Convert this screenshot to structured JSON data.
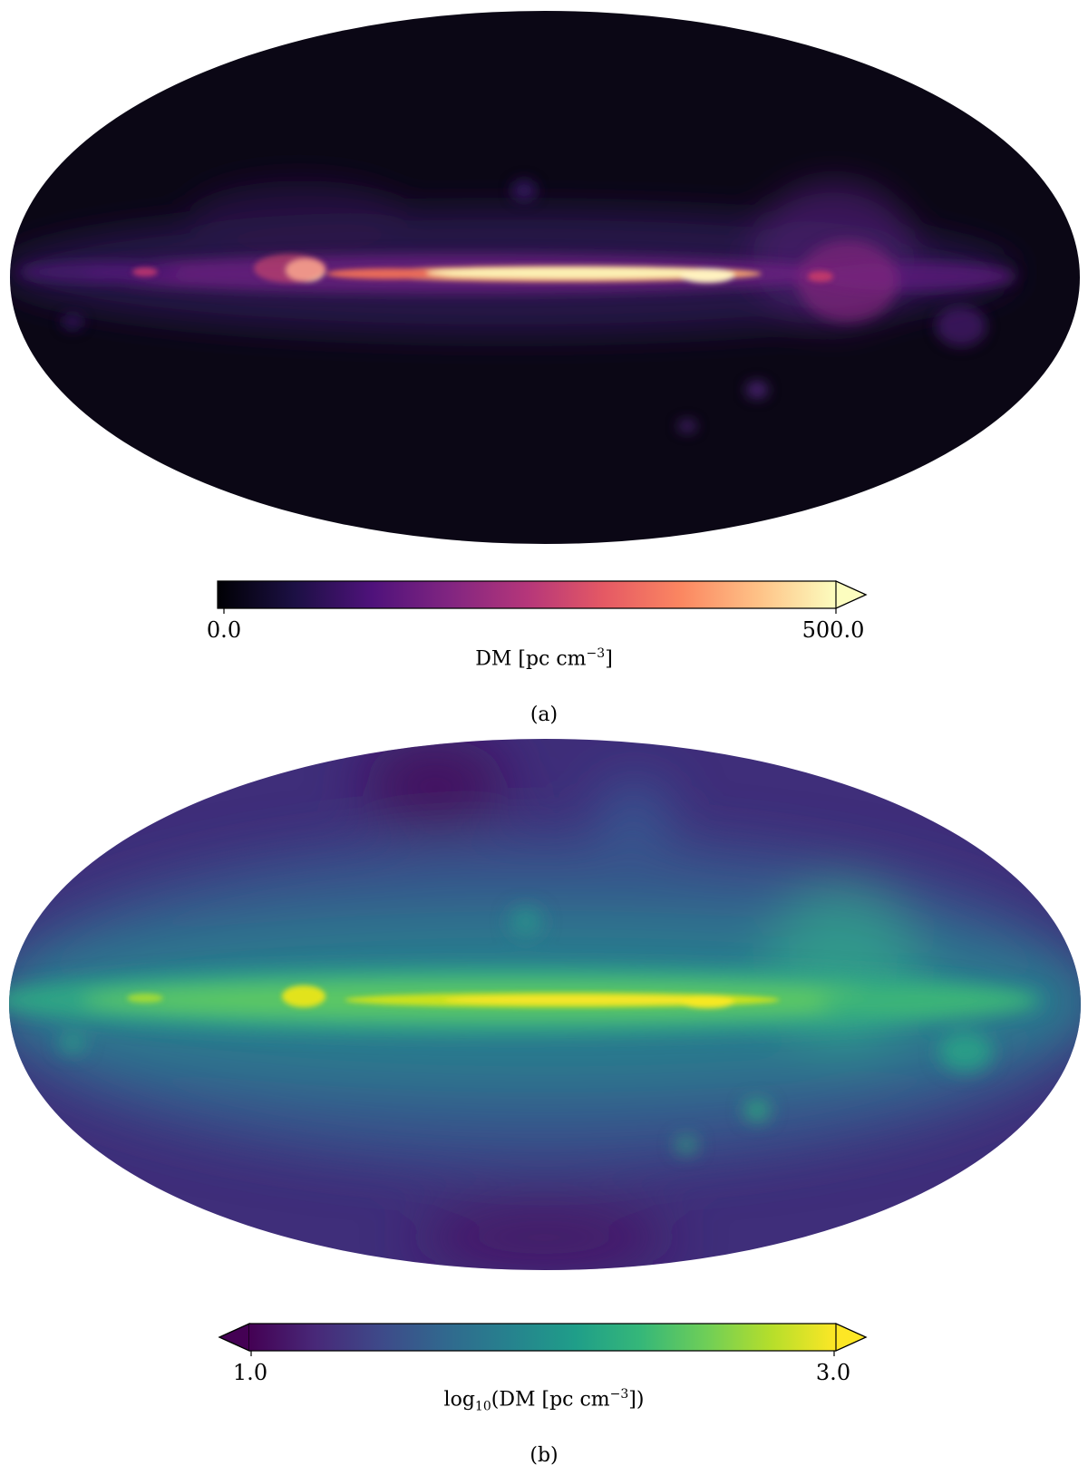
{
  "chart_data": [
    {
      "type": "heatmap",
      "projection": "mollweide",
      "panel": "(a)",
      "colormap": "magma",
      "colors": [
        "#000004",
        "#1c1044",
        "#4f127b",
        "#812581",
        "#b5367a",
        "#e55964",
        "#fb8761",
        "#fec287",
        "#fcfdbf"
      ],
      "colorbar": {
        "ticks": [
          "0.0",
          "500.0"
        ],
        "range": [
          0,
          500
        ],
        "extend": "max",
        "label_main": "DM [pc cm",
        "label_sup": "−3",
        "label_end": "]"
      }
    },
    {
      "type": "heatmap",
      "projection": "mollweide",
      "panel": "(b)",
      "colormap": "viridis",
      "colors": [
        "#440154",
        "#482878",
        "#3e4989",
        "#31688e",
        "#26828e",
        "#1f9e89",
        "#35b779",
        "#6ece58",
        "#b5de2b",
        "#fde725"
      ],
      "colorbar": {
        "ticks": [
          "1.0",
          "3.0"
        ],
        "range": [
          1.0,
          3.0
        ],
        "extend": "both",
        "label_main": "log",
        "label_sub": "10",
        "label_rest": "(DM [pc cm",
        "label_sup": "−3",
        "label_end": "])"
      }
    }
  ]
}
